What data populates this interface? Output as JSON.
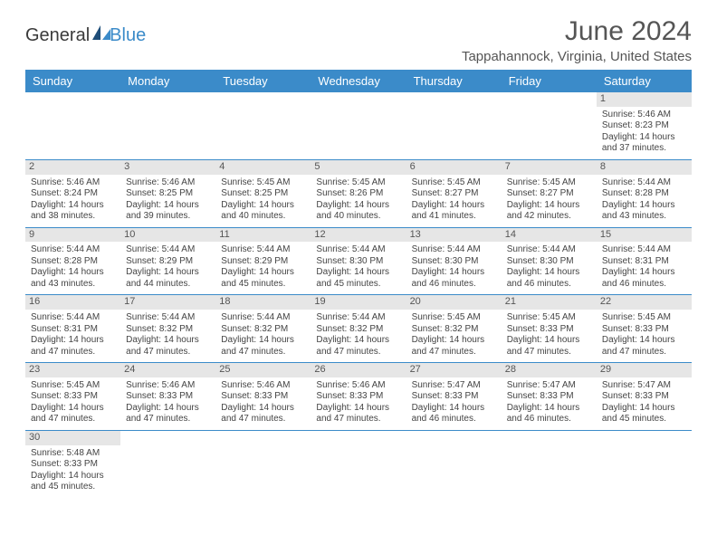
{
  "brand": {
    "text1": "General",
    "text2": "Blue",
    "accent": "#3b8bc9"
  },
  "title": "June 2024",
  "location": "Tappahannock, Virginia, United States",
  "colors": {
    "header_bg": "#3b8bc9",
    "header_text": "#ffffff",
    "daynum_bg": "#e6e6e6",
    "blank_bg": "#eeeeee",
    "border": "#3b8bc9",
    "text": "#444444"
  },
  "day_headers": [
    "Sunday",
    "Monday",
    "Tuesday",
    "Wednesday",
    "Thursday",
    "Friday",
    "Saturday"
  ],
  "weeks": [
    [
      null,
      null,
      null,
      null,
      null,
      null,
      {
        "n": "1",
        "sr": "Sunrise: 5:46 AM",
        "ss": "Sunset: 8:23 PM",
        "d1": "Daylight: 14 hours",
        "d2": "and 37 minutes."
      }
    ],
    [
      {
        "n": "2",
        "sr": "Sunrise: 5:46 AM",
        "ss": "Sunset: 8:24 PM",
        "d1": "Daylight: 14 hours",
        "d2": "and 38 minutes."
      },
      {
        "n": "3",
        "sr": "Sunrise: 5:46 AM",
        "ss": "Sunset: 8:25 PM",
        "d1": "Daylight: 14 hours",
        "d2": "and 39 minutes."
      },
      {
        "n": "4",
        "sr": "Sunrise: 5:45 AM",
        "ss": "Sunset: 8:25 PM",
        "d1": "Daylight: 14 hours",
        "d2": "and 40 minutes."
      },
      {
        "n": "5",
        "sr": "Sunrise: 5:45 AM",
        "ss": "Sunset: 8:26 PM",
        "d1": "Daylight: 14 hours",
        "d2": "and 40 minutes."
      },
      {
        "n": "6",
        "sr": "Sunrise: 5:45 AM",
        "ss": "Sunset: 8:27 PM",
        "d1": "Daylight: 14 hours",
        "d2": "and 41 minutes."
      },
      {
        "n": "7",
        "sr": "Sunrise: 5:45 AM",
        "ss": "Sunset: 8:27 PM",
        "d1": "Daylight: 14 hours",
        "d2": "and 42 minutes."
      },
      {
        "n": "8",
        "sr": "Sunrise: 5:44 AM",
        "ss": "Sunset: 8:28 PM",
        "d1": "Daylight: 14 hours",
        "d2": "and 43 minutes."
      }
    ],
    [
      {
        "n": "9",
        "sr": "Sunrise: 5:44 AM",
        "ss": "Sunset: 8:28 PM",
        "d1": "Daylight: 14 hours",
        "d2": "and 43 minutes."
      },
      {
        "n": "10",
        "sr": "Sunrise: 5:44 AM",
        "ss": "Sunset: 8:29 PM",
        "d1": "Daylight: 14 hours",
        "d2": "and 44 minutes."
      },
      {
        "n": "11",
        "sr": "Sunrise: 5:44 AM",
        "ss": "Sunset: 8:29 PM",
        "d1": "Daylight: 14 hours",
        "d2": "and 45 minutes."
      },
      {
        "n": "12",
        "sr": "Sunrise: 5:44 AM",
        "ss": "Sunset: 8:30 PM",
        "d1": "Daylight: 14 hours",
        "d2": "and 45 minutes."
      },
      {
        "n": "13",
        "sr": "Sunrise: 5:44 AM",
        "ss": "Sunset: 8:30 PM",
        "d1": "Daylight: 14 hours",
        "d2": "and 46 minutes."
      },
      {
        "n": "14",
        "sr": "Sunrise: 5:44 AM",
        "ss": "Sunset: 8:30 PM",
        "d1": "Daylight: 14 hours",
        "d2": "and 46 minutes."
      },
      {
        "n": "15",
        "sr": "Sunrise: 5:44 AM",
        "ss": "Sunset: 8:31 PM",
        "d1": "Daylight: 14 hours",
        "d2": "and 46 minutes."
      }
    ],
    [
      {
        "n": "16",
        "sr": "Sunrise: 5:44 AM",
        "ss": "Sunset: 8:31 PM",
        "d1": "Daylight: 14 hours",
        "d2": "and 47 minutes."
      },
      {
        "n": "17",
        "sr": "Sunrise: 5:44 AM",
        "ss": "Sunset: 8:32 PM",
        "d1": "Daylight: 14 hours",
        "d2": "and 47 minutes."
      },
      {
        "n": "18",
        "sr": "Sunrise: 5:44 AM",
        "ss": "Sunset: 8:32 PM",
        "d1": "Daylight: 14 hours",
        "d2": "and 47 minutes."
      },
      {
        "n": "19",
        "sr": "Sunrise: 5:44 AM",
        "ss": "Sunset: 8:32 PM",
        "d1": "Daylight: 14 hours",
        "d2": "and 47 minutes."
      },
      {
        "n": "20",
        "sr": "Sunrise: 5:45 AM",
        "ss": "Sunset: 8:32 PM",
        "d1": "Daylight: 14 hours",
        "d2": "and 47 minutes."
      },
      {
        "n": "21",
        "sr": "Sunrise: 5:45 AM",
        "ss": "Sunset: 8:33 PM",
        "d1": "Daylight: 14 hours",
        "d2": "and 47 minutes."
      },
      {
        "n": "22",
        "sr": "Sunrise: 5:45 AM",
        "ss": "Sunset: 8:33 PM",
        "d1": "Daylight: 14 hours",
        "d2": "and 47 minutes."
      }
    ],
    [
      {
        "n": "23",
        "sr": "Sunrise: 5:45 AM",
        "ss": "Sunset: 8:33 PM",
        "d1": "Daylight: 14 hours",
        "d2": "and 47 minutes."
      },
      {
        "n": "24",
        "sr": "Sunrise: 5:46 AM",
        "ss": "Sunset: 8:33 PM",
        "d1": "Daylight: 14 hours",
        "d2": "and 47 minutes."
      },
      {
        "n": "25",
        "sr": "Sunrise: 5:46 AM",
        "ss": "Sunset: 8:33 PM",
        "d1": "Daylight: 14 hours",
        "d2": "and 47 minutes."
      },
      {
        "n": "26",
        "sr": "Sunrise: 5:46 AM",
        "ss": "Sunset: 8:33 PM",
        "d1": "Daylight: 14 hours",
        "d2": "and 47 minutes."
      },
      {
        "n": "27",
        "sr": "Sunrise: 5:47 AM",
        "ss": "Sunset: 8:33 PM",
        "d1": "Daylight: 14 hours",
        "d2": "and 46 minutes."
      },
      {
        "n": "28",
        "sr": "Sunrise: 5:47 AM",
        "ss": "Sunset: 8:33 PM",
        "d1": "Daylight: 14 hours",
        "d2": "and 46 minutes."
      },
      {
        "n": "29",
        "sr": "Sunrise: 5:47 AM",
        "ss": "Sunset: 8:33 PM",
        "d1": "Daylight: 14 hours",
        "d2": "and 45 minutes."
      }
    ],
    [
      {
        "n": "30",
        "sr": "Sunrise: 5:48 AM",
        "ss": "Sunset: 8:33 PM",
        "d1": "Daylight: 14 hours",
        "d2": "and 45 minutes."
      },
      null,
      null,
      null,
      null,
      null,
      null
    ]
  ]
}
